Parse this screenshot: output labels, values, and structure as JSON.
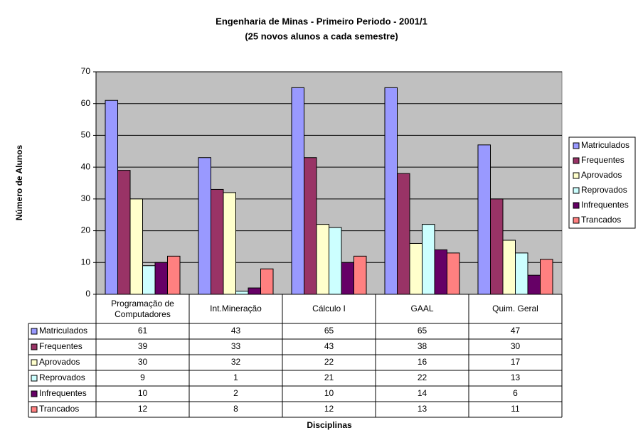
{
  "chart_data": {
    "type": "bar",
    "title": "Engenharia de Minas - Primeiro Periodo - 2001/1",
    "subtitle": "(25 novos alunos a cada semestre)",
    "y_label": "Número de Alunos",
    "x_label": "Disciplinas",
    "categories": [
      "Programação de Computadores",
      "Int.Mineração",
      "Cálculo I",
      "GAAL",
      "Quim. Geral"
    ],
    "series": [
      {
        "name": "Matriculados",
        "color": "#9999ff",
        "values": [
          61,
          43,
          65,
          65,
          47
        ]
      },
      {
        "name": "Frequentes",
        "color": "#993366",
        "values": [
          39,
          33,
          43,
          38,
          30
        ]
      },
      {
        "name": "Aprovados",
        "color": "#ffffcc",
        "values": [
          30,
          32,
          22,
          16,
          17
        ]
      },
      {
        "name": "Reprovados",
        "color": "#ccffff",
        "values": [
          9,
          1,
          21,
          22,
          13
        ]
      },
      {
        "name": "Infrequentes",
        "color": "#660066",
        "values": [
          10,
          2,
          10,
          14,
          6
        ]
      },
      {
        "name": "Trancados",
        "color": "#ff8080",
        "values": [
          12,
          8,
          12,
          13,
          11
        ]
      }
    ],
    "ylim": [
      0,
      70
    ],
    "yticks": [
      0,
      10,
      20,
      30,
      40,
      50,
      60,
      70
    ],
    "grid": true,
    "legend": "right",
    "plot_background": "#c0c0c0"
  }
}
